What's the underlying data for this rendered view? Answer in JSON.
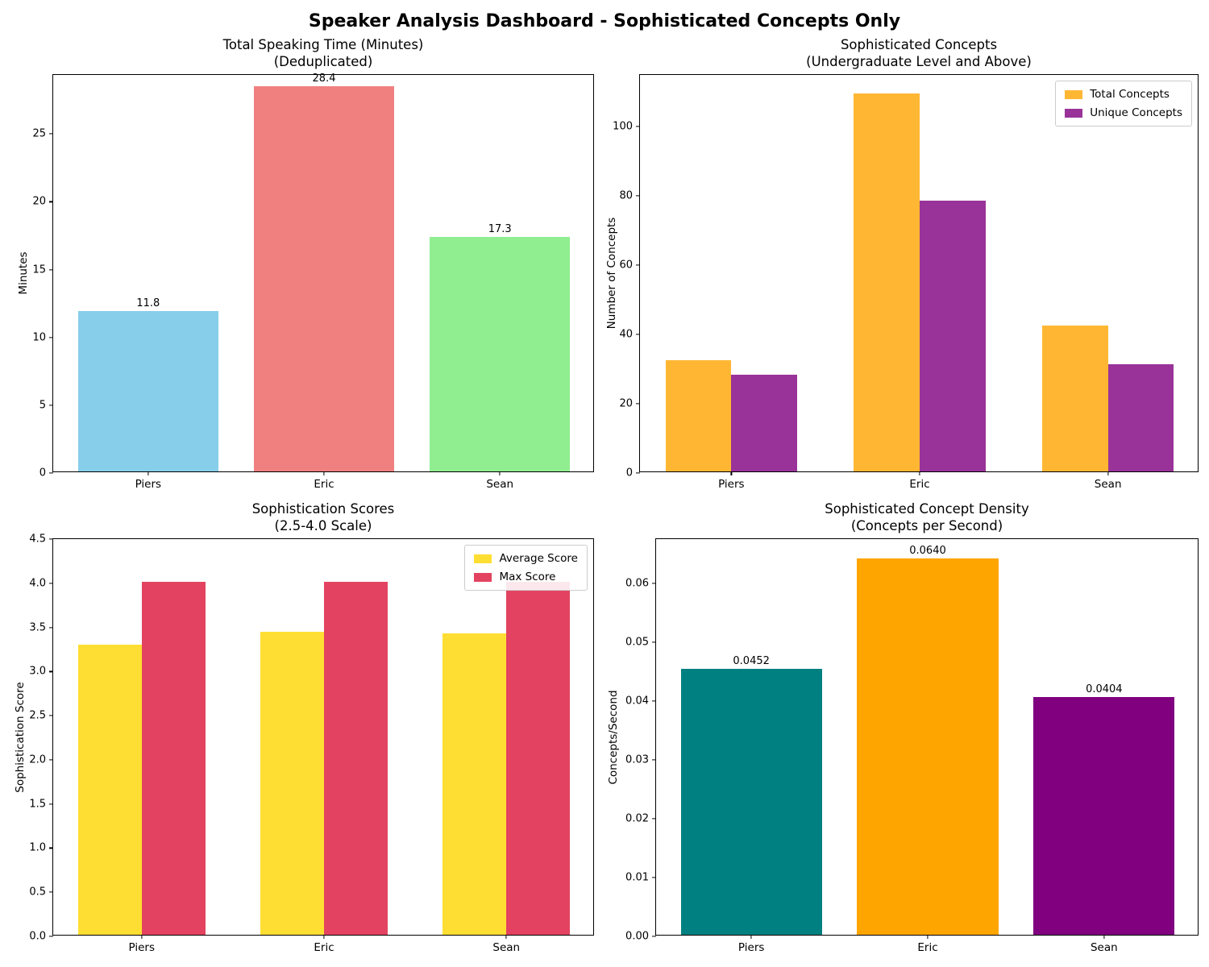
{
  "page_title": "Speaker Analysis Dashboard - Sophisticated Concepts Only",
  "chart_data": [
    {
      "id": "total-speaking-time",
      "type": "bar",
      "title": "Total Speaking Time (Minutes)",
      "subtitle": "(Deduplicated)",
      "ylabel": "Minutes",
      "categories": [
        "Piers",
        "Eric",
        "Sean"
      ],
      "series": [
        {
          "name": "Speaking Time",
          "values": [
            11.8,
            28.4,
            17.3
          ],
          "colors": [
            "#87CEEB",
            "#F08080",
            "#90EE90"
          ]
        }
      ],
      "value_labels": [
        "11.8",
        "28.4",
        "17.3"
      ],
      "ylim": [
        0,
        29.35
      ],
      "yticks": [
        0,
        5,
        10,
        15,
        20,
        25
      ],
      "ytick_labels": [
        "0",
        "5",
        "10",
        "15",
        "20",
        "25"
      ],
      "bar_width": 0.8,
      "grid": false,
      "legend": null
    },
    {
      "id": "sophisticated-concepts",
      "type": "bar",
      "title": "Sophisticated Concepts",
      "subtitle": "(Undergraduate Level and Above)",
      "ylabel": "Number of Concepts",
      "categories": [
        "Piers",
        "Eric",
        "Sean"
      ],
      "series": [
        {
          "name": "Total Concepts",
          "color": "#FFB733",
          "values": [
            32,
            109,
            42
          ]
        },
        {
          "name": "Unique Concepts",
          "color": "#993399",
          "values": [
            28,
            78,
            31
          ]
        }
      ],
      "value_labels": null,
      "ylim": [
        0,
        114.8
      ],
      "yticks": [
        0,
        20,
        40,
        60,
        80,
        100
      ],
      "ytick_labels": [
        "0",
        "20",
        "40",
        "60",
        "80",
        "100"
      ],
      "bar_width": 0.35,
      "grid": false,
      "legend": {
        "position": "top-right",
        "entries": [
          "Total Concepts",
          "Unique Concepts"
        ]
      }
    },
    {
      "id": "sophistication-scores",
      "type": "bar",
      "title": "Sophistication Scores",
      "subtitle": "(2.5-4.0 Scale)",
      "ylabel": "Sophistication Score",
      "categories": [
        "Piers",
        "Eric",
        "Sean"
      ],
      "series": [
        {
          "name": "Average Score",
          "color": "#FFDE33",
          "values": [
            3.29,
            3.43,
            3.41
          ]
        },
        {
          "name": "Max Score",
          "color": "#E34360",
          "values": [
            4.0,
            4.0,
            4.0
          ]
        }
      ],
      "value_labels": null,
      "ylim": [
        0,
        4.5
      ],
      "yticks": [
        0.0,
        0.5,
        1.0,
        1.5,
        2.0,
        2.5,
        3.0,
        3.5,
        4.0,
        4.5
      ],
      "ytick_labels": [
        "0.0",
        "0.5",
        "1.0",
        "1.5",
        "2.0",
        "2.5",
        "3.0",
        "3.5",
        "4.0",
        "4.5"
      ],
      "bar_width": 0.35,
      "grid": false,
      "legend": {
        "position": "top-right",
        "entries": [
          "Average Score",
          "Max Score"
        ]
      }
    },
    {
      "id": "concept-density",
      "type": "bar",
      "title": "Sophisticated Concept Density",
      "subtitle": "(Concepts per Second)",
      "ylabel": "Concepts/Second",
      "categories": [
        "Piers",
        "Eric",
        "Sean"
      ],
      "series": [
        {
          "name": "Concept Density",
          "values": [
            0.0452,
            0.064,
            0.0404
          ],
          "colors": [
            "#008080",
            "#FFA500",
            "#800080"
          ]
        }
      ],
      "value_labels": [
        "0.0452",
        "0.0640",
        "0.0404"
      ],
      "ylim": [
        0,
        0.0675
      ],
      "yticks": [
        0.0,
        0.01,
        0.02,
        0.03,
        0.04,
        0.05,
        0.06
      ],
      "ytick_labels": [
        "0.00",
        "0.01",
        "0.02",
        "0.03",
        "0.04",
        "0.05",
        "0.06"
      ],
      "bar_width": 0.8,
      "grid": false,
      "legend": null
    }
  ]
}
